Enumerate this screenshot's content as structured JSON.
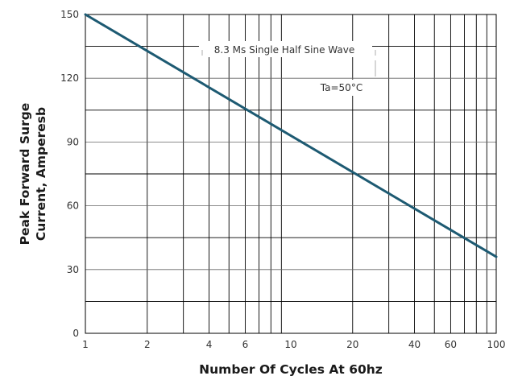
{
  "chart_data": {
    "type": "line",
    "title": "",
    "xlabel": "Number Of Cycles At 60hz",
    "ylabel_lines": [
      "Peak Forward Surge",
      "Current, Amperesb"
    ],
    "x_scale": "log",
    "xlim": [
      1,
      100
    ],
    "ylim": [
      0,
      150
    ],
    "x_ticks": [
      1,
      2,
      4,
      6,
      10,
      20,
      40,
      60,
      100
    ],
    "y_ticks": [
      0,
      30,
      60,
      90,
      120,
      150
    ],
    "grid": true,
    "line_color": "#1d5a72",
    "series": [
      {
        "x": [
          1,
          100
        ],
        "y": [
          150,
          36
        ]
      }
    ],
    "annotations": [
      "8.3 Ms Single Half Sine Wave",
      "Ta=50°C"
    ]
  }
}
